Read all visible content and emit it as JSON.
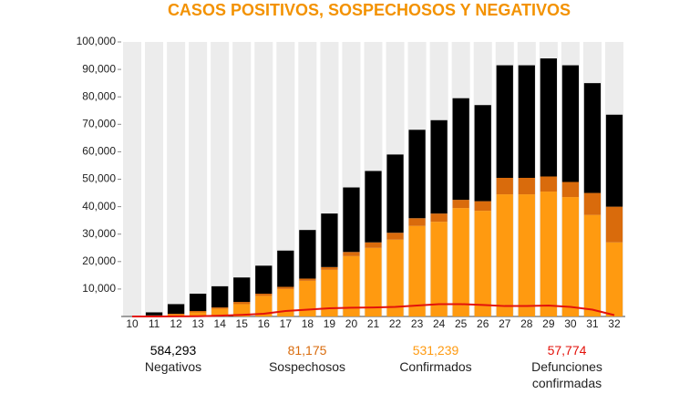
{
  "chart_data": {
    "type": "bar",
    "title": "CASOS POSITIVOS, SOSPECHOSOS Y NEGATIVOS",
    "categories": [
      "10",
      "11",
      "12",
      "13",
      "14",
      "15",
      "16",
      "17",
      "18",
      "19",
      "20",
      "21",
      "22",
      "23",
      "24",
      "25",
      "26",
      "27",
      "28",
      "29",
      "30",
      "31",
      "32"
    ],
    "ylim": [
      0,
      100000
    ],
    "yticks": [
      {
        "value": 10000,
        "label": "10,000"
      },
      {
        "value": 20000,
        "label": "20,000"
      },
      {
        "value": 30000,
        "label": "30,000"
      },
      {
        "value": 40000,
        "label": "40,000"
      },
      {
        "value": 50000,
        "label": "50,000"
      },
      {
        "value": 60000,
        "label": "60,000"
      },
      {
        "value": 70000,
        "label": "70,000"
      },
      {
        "value": 80000,
        "label": "80,000"
      },
      {
        "value": 90000,
        "label": "90,000"
      },
      {
        "value": 100000,
        "label": "100,000"
      }
    ],
    "series": [
      {
        "name": "Negativos",
        "type": "bar",
        "color": "#000000",
        "total": "584,293",
        "values": [
          0,
          1100,
          3500,
          6300,
          7700,
          8900,
          10200,
          13200,
          17700,
          19500,
          23500,
          26000,
          28500,
          32200,
          34000,
          37000,
          35000,
          41000,
          41000,
          43000,
          42500,
          40000,
          33500
        ]
      },
      {
        "name": "Sospechosos",
        "type": "bar",
        "color": "#d96b0c",
        "total": "81,175",
        "values": [
          0,
          100,
          300,
          500,
          500,
          800,
          800,
          800,
          800,
          1000,
          1500,
          2000,
          2500,
          2800,
          3000,
          3000,
          3500,
          6000,
          6000,
          5500,
          5500,
          8000,
          13000
        ]
      },
      {
        "name": "Confirmados",
        "type": "bar",
        "color": "#ff9a10",
        "total": "531,239",
        "values": [
          0,
          300,
          700,
          1500,
          2800,
          4500,
          7500,
          10000,
          13000,
          17000,
          22000,
          25000,
          28000,
          33000,
          34500,
          39500,
          38500,
          44500,
          44500,
          45500,
          43500,
          37000,
          27000
        ]
      },
      {
        "name": "Defunciones confirmadas",
        "type": "line",
        "color": "#e3120b",
        "total": "57,774",
        "values": [
          0,
          0,
          50,
          100,
          300,
          600,
          1000,
          2000,
          2500,
          3000,
          3200,
          3300,
          3500,
          4000,
          4500,
          4500,
          4200,
          3800,
          3800,
          4000,
          3500,
          2500,
          500
        ]
      }
    ]
  }
}
